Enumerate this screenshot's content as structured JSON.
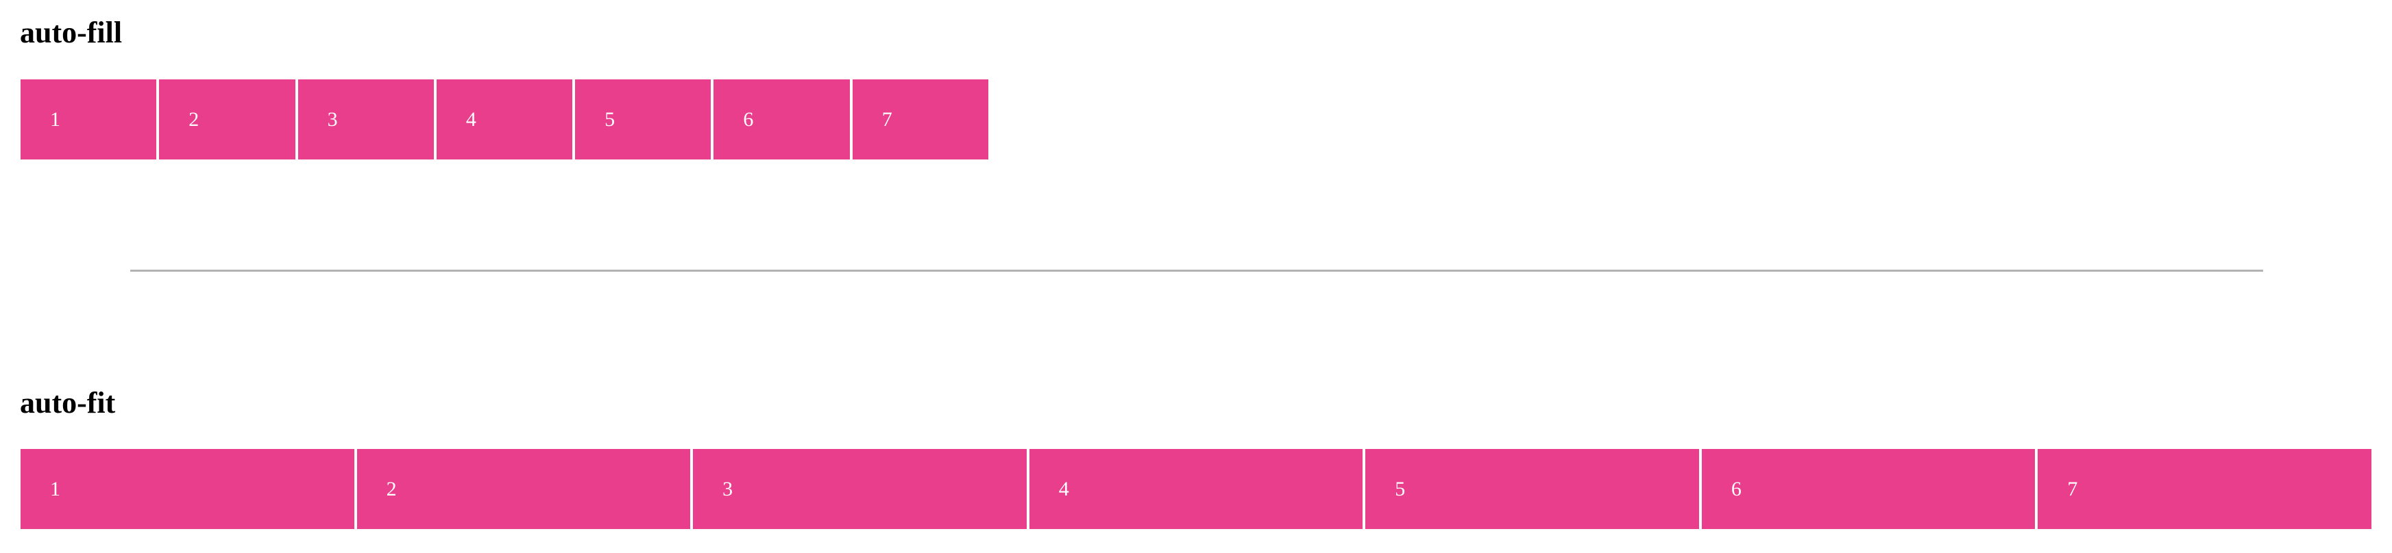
{
  "auto_fill": {
    "title": "auto-fill",
    "items": [
      "1",
      "2",
      "3",
      "4",
      "5",
      "6",
      "7"
    ],
    "accent_color": "#e83e8c"
  },
  "auto_fit": {
    "title": "auto-fit",
    "items": [
      "1",
      "2",
      "3",
      "4",
      "5",
      "6",
      "7"
    ],
    "accent_color": "#e83e8c"
  },
  "divider_color": "#b3b3b3"
}
